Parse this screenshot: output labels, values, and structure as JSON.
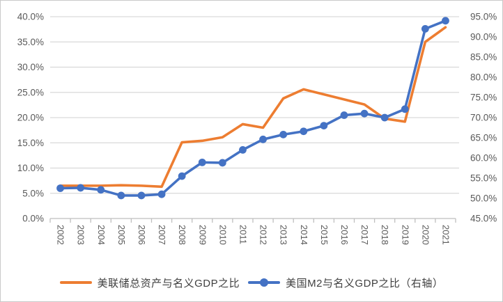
{
  "chart_data": {
    "type": "line",
    "title": "",
    "x": [
      "2002",
      "2003",
      "2004",
      "2005",
      "2006",
      "2007",
      "2008",
      "2009",
      "2010",
      "2011",
      "2012",
      "2013",
      "2014",
      "2015",
      "2016",
      "2017",
      "2018",
      "2019",
      "2020",
      "2021"
    ],
    "series": [
      {
        "name": "美联储总资产与名义GDP之比",
        "axis": "left",
        "color": "#ED7D31",
        "marker": "none",
        "values": [
          6.5,
          6.5,
          6.5,
          6.6,
          6.5,
          6.3,
          15.1,
          15.4,
          16.1,
          18.7,
          18.0,
          23.8,
          25.6,
          24.6,
          23.6,
          22.6,
          19.8,
          19.2,
          35.0,
          37.9
        ]
      },
      {
        "name": "美国M2与名义GDP之比（右轴）",
        "axis": "right",
        "color": "#4472C4",
        "marker": "circle",
        "values": [
          52.5,
          52.6,
          52.1,
          50.7,
          50.7,
          51.0,
          55.5,
          58.9,
          58.8,
          62.0,
          64.6,
          65.8,
          66.6,
          68.0,
          70.6,
          71.0,
          70.0,
          72.1,
          92.0,
          94.0
        ]
      }
    ],
    "left_axis": {
      "min": 0,
      "max": 40,
      "step": 5,
      "tick_labels": [
        "0.0%",
        "5.0%",
        "10.0%",
        "15.0%",
        "20.0%",
        "25.0%",
        "30.0%",
        "35.0%",
        "40.0%"
      ]
    },
    "right_axis": {
      "min": 45,
      "max": 95,
      "step": 5,
      "tick_labels": [
        "45.0%",
        "50.0%",
        "55.0%",
        "60.0%",
        "65.0%",
        "70.0%",
        "75.0%",
        "80.0%",
        "85.0%",
        "90.0%",
        "95.0%"
      ]
    },
    "grid": true,
    "legend_position": "bottom"
  },
  "legend": {
    "items": [
      {
        "label": "美联储总资产与名义GDP之比",
        "color": "#ED7D31",
        "marker": "line"
      },
      {
        "label": "美国M2与名义GDP之比（右轴）",
        "color": "#4472C4",
        "marker": "line-dot"
      }
    ]
  },
  "styles": {
    "grid_color": "#D9D9D9",
    "axis_line_color": "#BFBFBF",
    "axis_label_color": "#595959",
    "legend_text_color": "#3F3F3F",
    "background": "#FFFFFF"
  }
}
